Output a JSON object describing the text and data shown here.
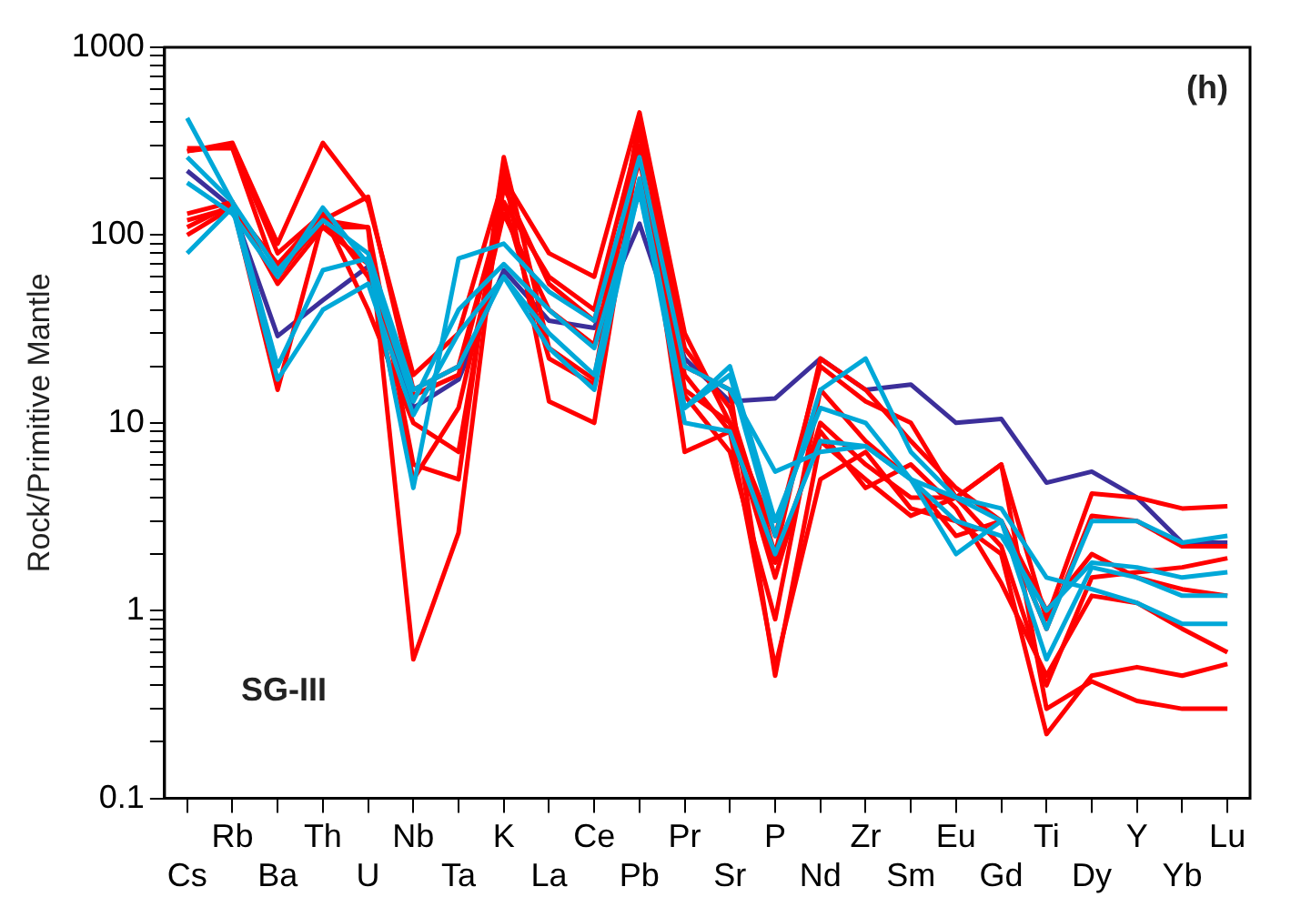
{
  "chart_data": {
    "type": "line",
    "ylabel": "Rock/Primitive Mantle",
    "annotations": [
      "(h)",
      "SG-III"
    ],
    "categories": [
      "Cs",
      "Rb",
      "Ba",
      "Th",
      "U",
      "Nb",
      "Ta",
      "K",
      "La",
      "Ce",
      "Pb",
      "Pr",
      "Sr",
      "P",
      "Nd",
      "Zr",
      "Sm",
      "Eu",
      "Gd",
      "Ti",
      "Dy",
      "Y",
      "Yb",
      "Lu"
    ],
    "log": "y",
    "ylim": [
      0.1,
      1000
    ],
    "yticks": [
      0.1,
      {
        "value": 0.2,
        "label": null
      },
      {
        "value": 0.3,
        "label": null
      },
      {
        "value": 0.4,
        "label": null
      },
      {
        "value": 0.5,
        "label": null
      },
      {
        "value": 0.6,
        "label": null
      },
      {
        "value": 0.7,
        "label": null
      },
      {
        "value": 0.8,
        "label": null
      },
      {
        "value": 0.9,
        "label": null
      },
      1,
      {
        "value": 2,
        "label": null
      },
      {
        "value": 3,
        "label": null
      },
      {
        "value": 4,
        "label": null
      },
      {
        "value": 5,
        "label": null
      },
      {
        "value": 6,
        "label": null
      },
      {
        "value": 7,
        "label": null
      },
      {
        "value": 8,
        "label": null
      },
      {
        "value": 9,
        "label": null
      },
      10,
      {
        "value": 20,
        "label": null
      },
      {
        "value": 30,
        "label": null
      },
      {
        "value": 40,
        "label": null
      },
      {
        "value": 50,
        "label": null
      },
      {
        "value": 60,
        "label": null
      },
      {
        "value": 70,
        "label": null
      },
      {
        "value": 80,
        "label": null
      },
      {
        "value": 90,
        "label": null
      },
      100,
      {
        "value": 200,
        "label": null
      },
      {
        "value": 300,
        "label": null
      },
      {
        "value": 400,
        "label": null
      },
      {
        "value": 500,
        "label": null
      },
      {
        "value": 600,
        "label": null
      },
      {
        "value": 700,
        "label": null
      },
      {
        "value": 800,
        "label": null
      },
      {
        "value": 900,
        "label": null
      },
      1000
    ],
    "grid": false,
    "legend": false,
    "marker": "none",
    "line_style": "solid",
    "series": [
      {
        "color": "#00a8d8",
        "values": [
          420,
          150,
          20,
          65,
          75,
          4.5,
          75,
          90,
          50,
          35,
          260,
          20,
          15,
          5.5,
          7,
          7.5,
          5,
          2,
          3,
          0.55,
          1.7,
          1.5,
          1.2,
          1.2
        ]
      },
      {
        "color": "#00a8d8",
        "values": [
          80,
          140,
          17,
          40,
          55,
          11,
          30,
          60,
          30,
          18,
          200,
          12,
          18,
          2.5,
          15,
          22,
          7,
          4,
          3.5,
          1.5,
          1.3,
          1.1,
          0.85,
          0.85
        ]
      },
      {
        "color": "#00a8d8",
        "values": [
          190,
          130,
          60,
          140,
          70,
          13,
          40,
          70,
          40,
          25,
          170,
          12,
          20,
          3,
          12,
          10,
          5,
          4,
          3,
          0.8,
          3,
          3,
          2.3,
          2.5
        ]
      },
      {
        "color": "#00a8d8",
        "values": [
          260,
          150,
          65,
          120,
          80,
          15,
          20,
          60,
          25,
          15,
          180,
          10,
          9,
          2,
          8,
          7.5,
          5,
          3,
          2.5,
          1,
          1.8,
          1.7,
          1.5,
          1.6
        ]
      },
      {
        "color": "#ff0000",
        "values": [
          280,
          310,
          90,
          310,
          150,
          18,
          30,
          200,
          80,
          60,
          450,
          30,
          10,
          2.5,
          20,
          13,
          10,
          4,
          6,
          0.9,
          4.2,
          4,
          3.5,
          3.6
        ]
      },
      {
        "color": "#ff0000",
        "values": [
          290,
          290,
          60,
          120,
          160,
          15,
          20,
          150,
          60,
          40,
          350,
          25,
          12,
          2,
          22,
          15,
          8,
          4.5,
          3,
          0.8,
          3.2,
          3,
          2.2,
          2.2
        ]
      },
      {
        "color": "#ff0000",
        "values": [
          130,
          150,
          55,
          110,
          110,
          6,
          5,
          260,
          25,
          17,
          420,
          15,
          10,
          1.5,
          10,
          6,
          4,
          4,
          2.2,
          0.4,
          1.5,
          1.6,
          1.7,
          1.9
        ]
      },
      {
        "color": "#ff0000",
        "values": [
          110,
          145,
          15,
          120,
          110,
          0.55,
          2.6,
          220,
          13,
          10,
          300,
          7,
          9,
          0.5,
          5,
          7,
          3.5,
          3,
          2,
          0.22,
          0.45,
          0.5,
          0.45,
          0.52
        ]
      },
      {
        "color": "#ff0000",
        "values": [
          120,
          140,
          70,
          130,
          60,
          14,
          18,
          150,
          22,
          16,
          380,
          20,
          15,
          0.45,
          8,
          5,
          3.2,
          4,
          6,
          0.3,
          0.42,
          0.33,
          0.3,
          0.3
        ]
      },
      {
        "color": "#ff0000",
        "values": [
          280,
          300,
          80,
          130,
          40,
          10,
          7,
          180,
          55,
          35,
          250,
          18,
          9,
          1.8,
          9,
          4.5,
          6,
          3.5,
          1.4,
          0.45,
          1.2,
          1.1,
          0.8,
          0.6
        ]
      },
      {
        "color": "#ff0000",
        "values": [
          100,
          140,
          70,
          110,
          70,
          5,
          12,
          130,
          40,
          26,
          280,
          14,
          7,
          0.9,
          15,
          8,
          5,
          2.5,
          3,
          1,
          2,
          1.5,
          1.3,
          1.2
        ]
      },
      {
        "color": "#3c2f9a",
        "values": [
          220,
          140,
          29,
          45,
          68,
          12,
          17,
          65,
          35,
          32,
          115,
          22,
          13,
          13.5,
          22,
          15,
          16,
          10,
          10.5,
          4.8,
          5.5,
          4,
          2.3,
          2.3
        ]
      }
    ]
  }
}
